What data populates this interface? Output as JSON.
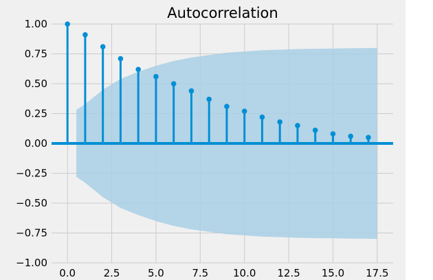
{
  "chart_data": {
    "type": "stem",
    "title": "Autocorrelation",
    "xlabel": "",
    "ylabel": "",
    "xlim": [
      -0.9,
      18.4
    ],
    "ylim": [
      -1.0,
      1.0
    ],
    "x_ticks": [
      0.0,
      2.5,
      5.0,
      7.5,
      10.0,
      12.5,
      15.0,
      17.5
    ],
    "x_tick_labels": [
      "0.0",
      "2.5",
      "5.0",
      "7.5",
      "10.0",
      "12.5",
      "15.0",
      "17.5"
    ],
    "y_ticks": [
      1.0,
      0.75,
      0.5,
      0.25,
      0.0,
      -0.25,
      -0.5,
      -0.75,
      -1.0
    ],
    "y_tick_labels": [
      "1.00",
      "0.75",
      "0.50",
      "0.25",
      "0.00",
      "−0.25",
      "−0.50",
      "−0.75",
      "−1.00"
    ],
    "grid": true,
    "lags": [
      0,
      1,
      2,
      3,
      4,
      5,
      6,
      7,
      8,
      9,
      10,
      11,
      12,
      13,
      14,
      15,
      16,
      17
    ],
    "values": [
      1.0,
      0.91,
      0.81,
      0.71,
      0.62,
      0.56,
      0.5,
      0.44,
      0.37,
      0.31,
      0.27,
      0.22,
      0.18,
      0.15,
      0.11,
      0.08,
      0.06,
      0.05
    ],
    "confidence_band": {
      "x": [
        0.5,
        1,
        2,
        3,
        4,
        5,
        6,
        7,
        8,
        9,
        10,
        11,
        12,
        13,
        14,
        15,
        16,
        17,
        17.5
      ],
      "upper": [
        0.28,
        0.33,
        0.45,
        0.54,
        0.6,
        0.65,
        0.69,
        0.72,
        0.74,
        0.76,
        0.77,
        0.78,
        0.785,
        0.79,
        0.793,
        0.795,
        0.797,
        0.798,
        0.8
      ]
    },
    "colors": {
      "stem": "#008FD5",
      "band": "#A9CFE5",
      "plot_bg": "#F0F0F0",
      "grid": "#CBCBCB",
      "zero_line": "#008FD5"
    }
  }
}
